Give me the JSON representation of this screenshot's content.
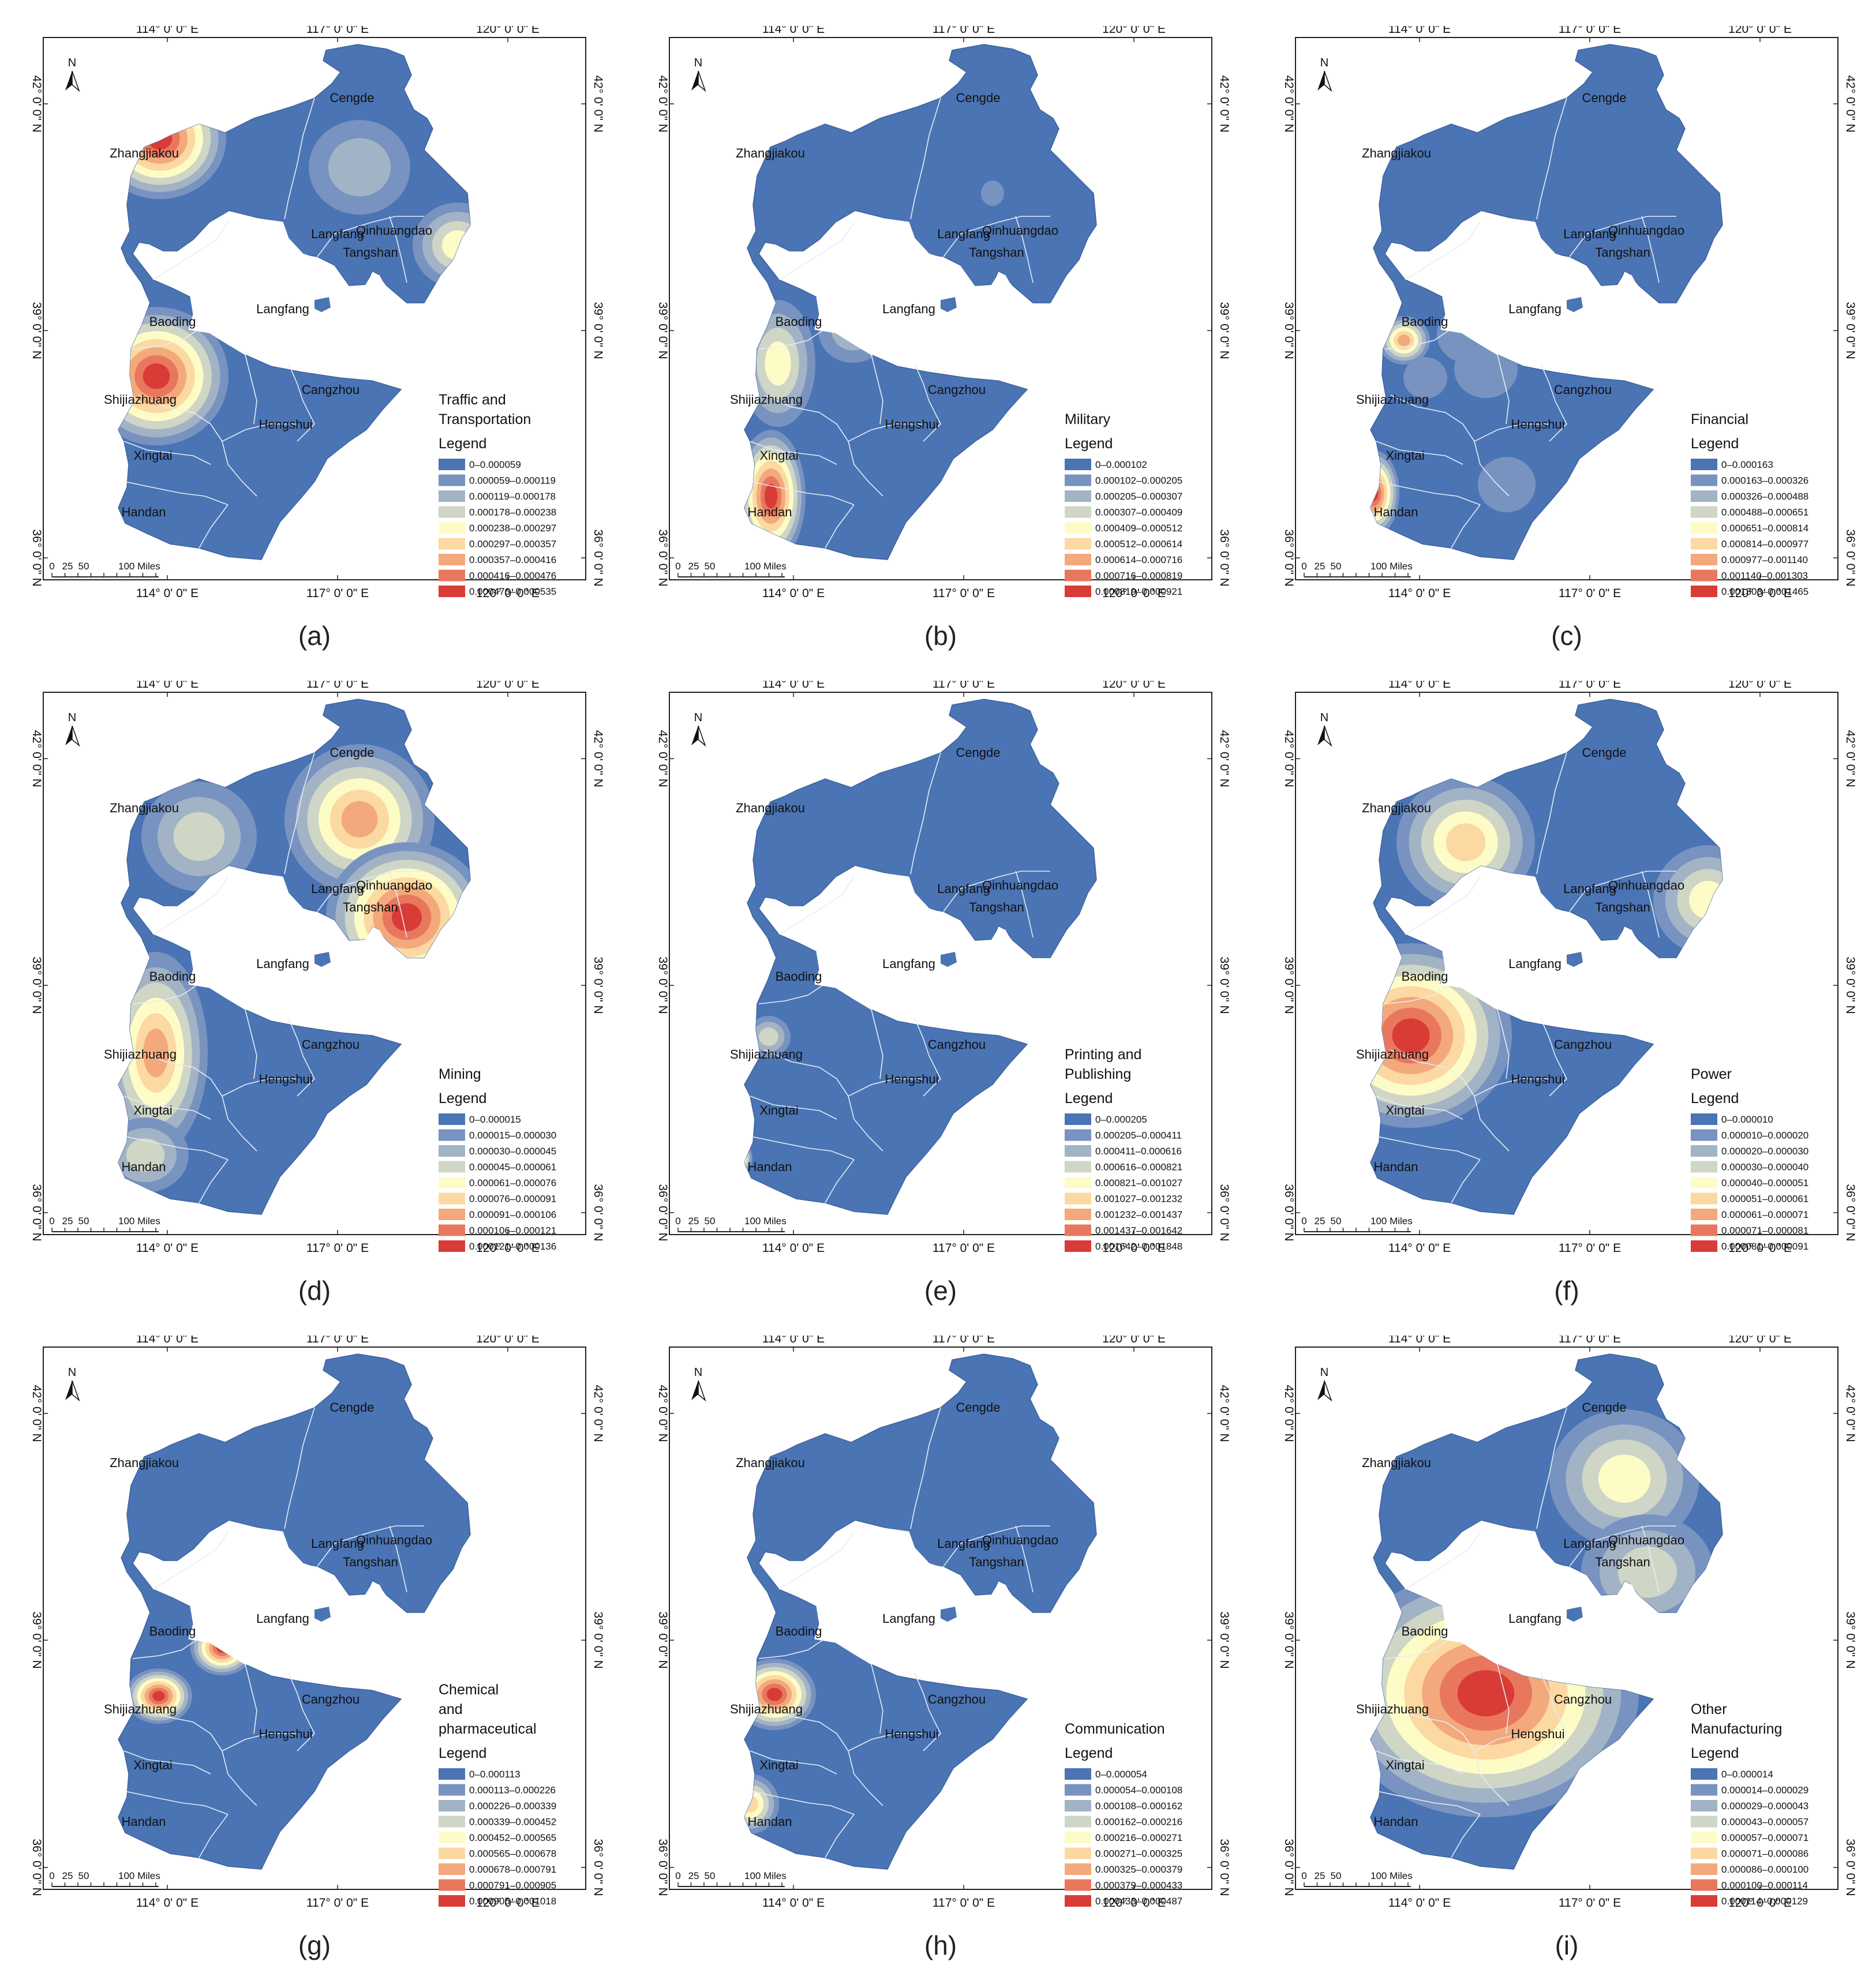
{
  "axes": {
    "lon_labels": [
      "114° 0' 0\" E",
      "117° 0' 0\" E",
      "120° 0' 0\" E"
    ],
    "lat_labels": [
      "42° 0' 0\" N",
      "39° 0' 0\" N",
      "36° 0' 0\" N"
    ]
  },
  "north_arrow": {
    "label": "N"
  },
  "scale_bar": {
    "ticks": [
      "0",
      "25",
      "50",
      "100 Miles"
    ]
  },
  "cities": [
    {
      "name": "Cengde"
    },
    {
      "name": "Zhangjiakou"
    },
    {
      "name": "Langfang"
    },
    {
      "name": "Qinhuangdao"
    },
    {
      "name": "Tangshan"
    },
    {
      "name": "Baoding"
    },
    {
      "name": "Langfang"
    },
    {
      "name": "Cangzhou"
    },
    {
      "name": "Shijiazhuang"
    },
    {
      "name": "Hengshui"
    },
    {
      "name": "Xingtai"
    },
    {
      "name": "Handan"
    }
  ],
  "colors": {
    "base": "#4a74b4",
    "ramp": [
      "#4a74b4",
      "#7893c0",
      "#a3b3c6",
      "#cfd6c6",
      "#fefcc6",
      "#fcd9a2",
      "#f3a97c",
      "#e8775e",
      "#d93b36"
    ]
  },
  "panels": [
    {
      "caption": "(a)",
      "title": [
        "Traffic and",
        "Transportation"
      ],
      "legend_label": "Legend",
      "legend": [
        "0–0.000059",
        "0.000059–0.000119",
        "0.000119–0.000178",
        "0.000178–0.000238",
        "0.000238–0.000297",
        "0.000297–0.000357",
        "0.000357–0.000416",
        "0.000416–0.000476",
        "0.000476–0.000535"
      ]
    },
    {
      "caption": "(b)",
      "title": [
        "Military"
      ],
      "legend_label": "Legend",
      "legend": [
        "0–0.000102",
        "0.000102–0.000205",
        "0.000205–0.000307",
        "0.000307–0.000409",
        "0.000409–0.000512",
        "0.000512–0.000614",
        "0.000614–0.000716",
        "0.000716–0.000819",
        "0.000819–0.000921"
      ]
    },
    {
      "caption": "(c)",
      "title": [
        "Financial"
      ],
      "legend_label": "Legend",
      "legend": [
        "0–0.000163",
        "0.000163–0.000326",
        "0.000326–0.000488",
        "0.000488–0.000651",
        "0.000651–0.000814",
        "0.000814–0.000977",
        "0.000977–0.001140",
        "0.001140–0.001303",
        "0.001303–0.001465"
      ]
    },
    {
      "caption": "(d)",
      "title": [
        "Mining"
      ],
      "legend_label": "Legend",
      "legend": [
        "0–0.000015",
        "0.000015–0.000030",
        "0.000030–0.000045",
        "0.000045–0.000061",
        "0.000061–0.000076",
        "0.000076–0.000091",
        "0.000091–0.000106",
        "0.000106–0.000121",
        "0.000121–0.000136"
      ]
    },
    {
      "caption": "(e)",
      "title": [
        "Printing and",
        "Publishing"
      ],
      "legend_label": "Legend",
      "legend": [
        "0–0.000205",
        "0.000205–0.000411",
        "0.000411–0.000616",
        "0.000616–0.000821",
        "0.000821–0.001027",
        "0.001027–0.001232",
        "0.001232–0.001437",
        "0.001437–0.001642",
        "0.001642–0.001848"
      ]
    },
    {
      "caption": "(f)",
      "title": [
        "Power"
      ],
      "legend_label": "Legend",
      "legend": [
        "0–0.000010",
        "0.000010–0.000020",
        "0.000020–0.000030",
        "0.000030–0.000040",
        "0.000040–0.000051",
        "0.000051–0.000061",
        "0.000061–0.000071",
        "0.000071–0.000081",
        "0.000081–0.000091"
      ]
    },
    {
      "caption": "(g)",
      "title": [
        "Chemical",
        "and",
        "pharmaceutical"
      ],
      "legend_label": "Legend",
      "legend": [
        "0–0.000113",
        "0.000113–0.000226",
        "0.000226–0.000339",
        "0.000339–0.000452",
        "0.000452–0.000565",
        "0.000565–0.000678",
        "0.000678–0.000791",
        "0.000791–0.000905",
        "0.000905–0.001018"
      ]
    },
    {
      "caption": "(h)",
      "title": [
        "Communication"
      ],
      "legend_label": "Legend",
      "legend": [
        "0–0.000054",
        "0.000054–0.000108",
        "0.000108–0.000162",
        "0.000162–0.000216",
        "0.000216–0.000271",
        "0.000271–0.000325",
        "0.000325–0.000379",
        "0.000379–0.000433",
        "0.000433–0.000487"
      ]
    },
    {
      "caption": "(i)",
      "title": [
        "Other",
        "Manufacturing"
      ],
      "legend_label": "Legend",
      "legend": [
        "0–0.000014",
        "0.000014–0.000029",
        "0.000029–0.000043",
        "0.000043–0.000057",
        "0.000057–0.000071",
        "0.000071–0.000086",
        "0.000086–0.000100",
        "0.000100–0.000114",
        "0.000114–0.000129"
      ]
    }
  ]
}
